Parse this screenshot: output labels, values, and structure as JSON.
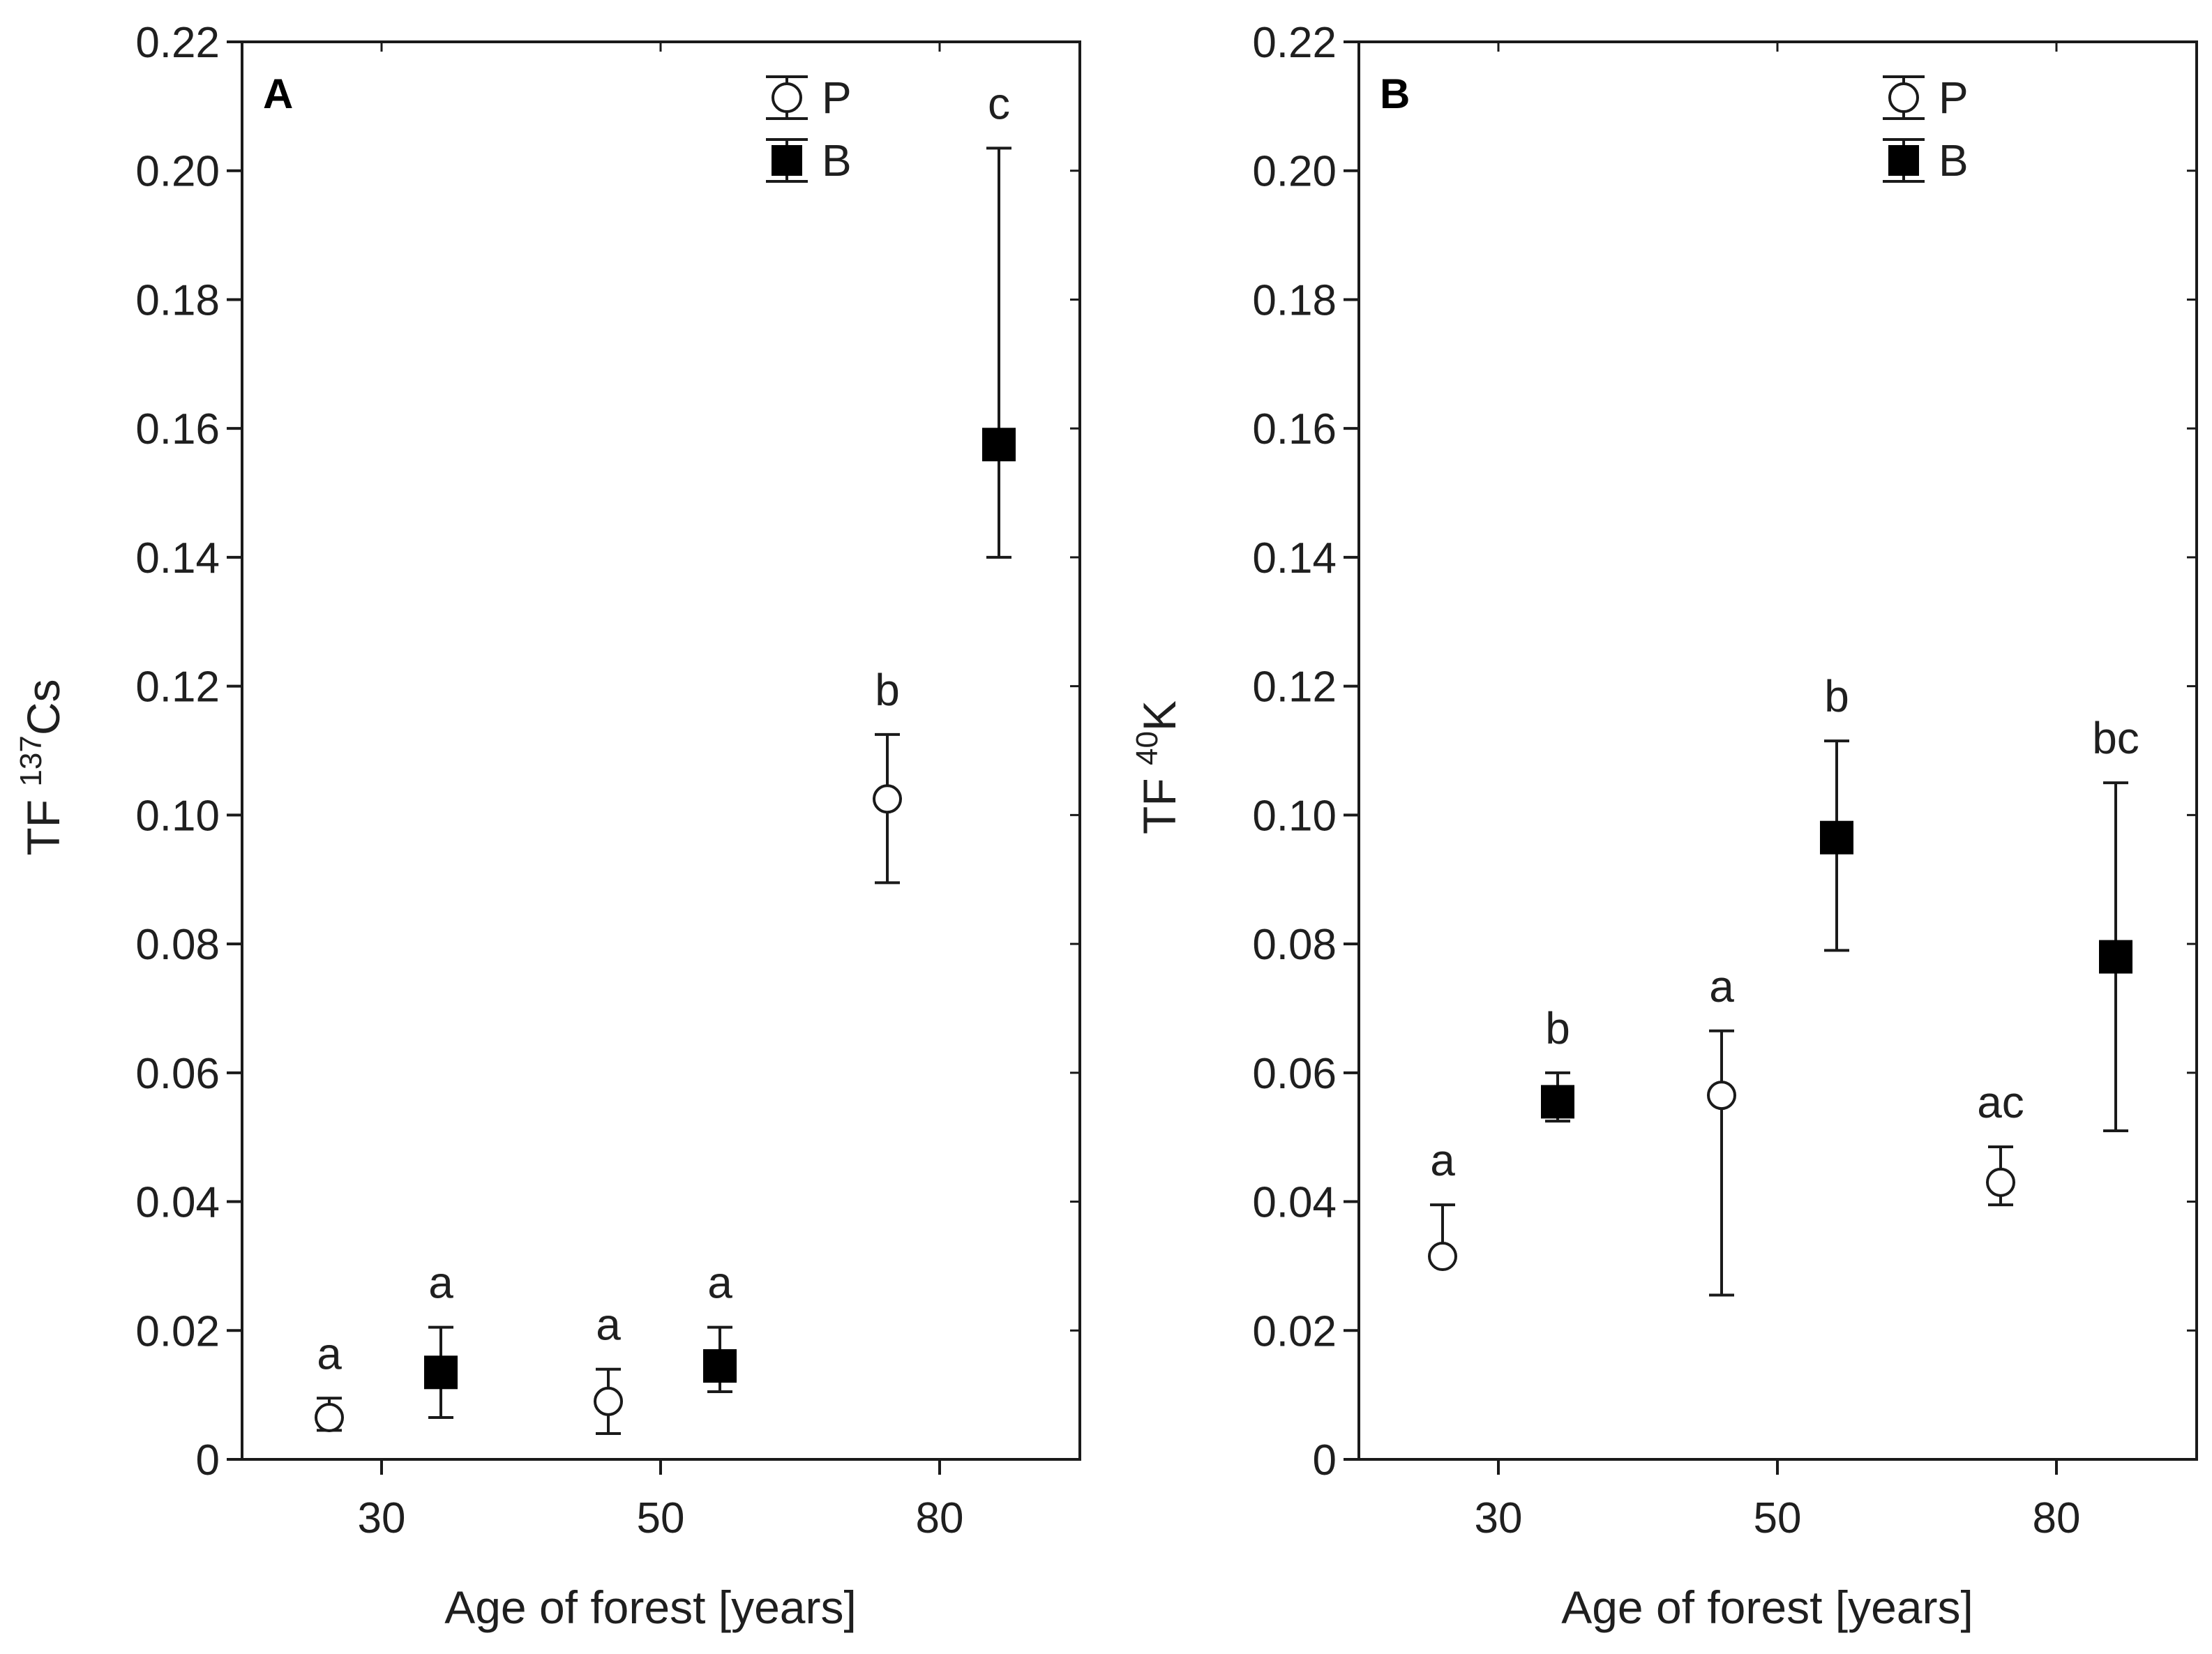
{
  "chart_data": [
    {
      "type": "scatter",
      "panel_label": "A",
      "xlabel": "Age of forest [years]",
      "ylabel": {
        "prefix": "TF ",
        "sup": "137",
        "main": "Cs"
      },
      "categories": [
        "30",
        "50",
        "80"
      ],
      "ylim": [
        0,
        0.22
      ],
      "yticks": [
        "0",
        "0.02",
        "0.04",
        "0.06",
        "0.08",
        "0.10",
        "0.12",
        "0.14",
        "0.16",
        "0.18",
        "0.20",
        "0.22"
      ],
      "legend": {
        "position": "top-right",
        "entries": [
          "P",
          "B"
        ]
      },
      "series": [
        {
          "name": "P",
          "marker": "open-circle",
          "values": [
            0.0065,
            0.009,
            0.1025
          ],
          "low": [
            0.0045,
            0.004,
            0.0895
          ],
          "high": [
            0.0095,
            0.014,
            0.1125
          ],
          "letters": [
            "a",
            "a",
            "b"
          ]
        },
        {
          "name": "B",
          "marker": "filled-square",
          "values": [
            0.0135,
            0.0145,
            0.1575
          ],
          "low": [
            0.0065,
            0.0105,
            0.14
          ],
          "high": [
            0.0205,
            0.0205,
            0.2035
          ],
          "letters": [
            "a",
            "a",
            "c"
          ]
        }
      ]
    },
    {
      "type": "scatter",
      "panel_label": "B",
      "xlabel": "Age of forest [years]",
      "ylabel": {
        "prefix": "TF ",
        "sup": "40",
        "main": "K"
      },
      "categories": [
        "30",
        "50",
        "80"
      ],
      "ylim": [
        0,
        0.22
      ],
      "yticks": [
        "0",
        "0.02",
        "0.04",
        "0.06",
        "0.08",
        "0.10",
        "0.12",
        "0.14",
        "0.16",
        "0.18",
        "0.20",
        "0.22"
      ],
      "legend": {
        "position": "top-right",
        "entries": [
          "P",
          "B"
        ]
      },
      "series": [
        {
          "name": "P",
          "marker": "open-circle",
          "values": [
            0.0315,
            0.0565,
            0.043
          ],
          "low": [
            0.0305,
            0.0255,
            0.0395
          ],
          "high": [
            0.0395,
            0.0665,
            0.0485
          ],
          "letters": [
            "a",
            "a",
            "ac"
          ]
        },
        {
          "name": "B",
          "marker": "filled-square",
          "values": [
            0.0555,
            0.0965,
            0.078
          ],
          "low": [
            0.0525,
            0.079,
            0.051
          ],
          "high": [
            0.06,
            0.1115,
            0.105
          ],
          "letters": [
            "b",
            "b",
            "bc"
          ]
        }
      ]
    }
  ]
}
